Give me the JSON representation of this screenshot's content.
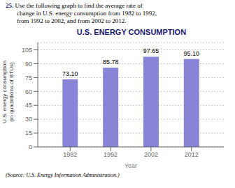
{
  "chart_data": {
    "type": "bar",
    "title": "U.S. ENERGY CONSUMPTION",
    "annotations": [
      "25.",
      "Use the following graph to find the average rate of",
      "change in U.S. energy consumption from 1982 to 1992,",
      "from 1992 to 2002, and from 2002 to 2012.",
      "(Source: U.S. Energy Information Administration.)"
    ],
    "xlabel": "Year",
    "ylabel": [
      "U.S. energy consumption",
      "(in quadrillions of BTUs)"
    ],
    "x": [
      1982,
      1992,
      2002,
      2012
    ],
    "values": [
      73.1,
      85.78,
      97.65,
      95.1
    ],
    "value_labels": [
      "73.10",
      "85.78",
      "97.65",
      "95.10"
    ],
    "data_labels": true,
    "xlim": [
      1974,
      2020
    ],
    "xticks": [
      1982,
      1992,
      2002,
      2012
    ],
    "ylim": [
      0,
      113
    ],
    "yticks": [
      0,
      15,
      30,
      45,
      60,
      75,
      90,
      105
    ],
    "grid": true,
    "color": "#8884d8"
  }
}
